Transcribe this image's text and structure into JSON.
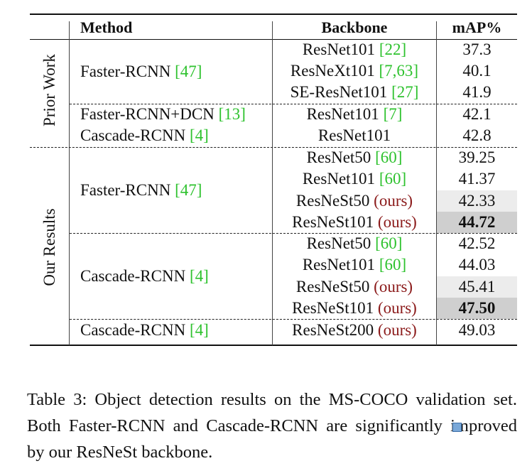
{
  "table": {
    "headers": {
      "method": "Method",
      "backbone": "Backbone",
      "map": "mAP%"
    },
    "groups": {
      "prior": "Prior Work",
      "ours": "Our Results"
    },
    "rows": [
      {
        "method": "",
        "backbone": "ResNet101",
        "cite": "[22]",
        "ours": "",
        "map": "37.3"
      },
      {
        "method": "Faster-RCNN",
        "method_cite": "[47]",
        "backbone": "ResNeXt101",
        "cite": "[7,63]",
        "ours": "",
        "map": "40.1"
      },
      {
        "method": "",
        "backbone": "SE-ResNet101",
        "cite": "[27]",
        "ours": "",
        "map": "41.9"
      },
      {
        "method": "Faster-RCNN+DCN",
        "method_cite": "[13]",
        "backbone": "ResNet101",
        "cite": "[7]",
        "ours": "",
        "map": "42.1"
      },
      {
        "method": "Cascade-RCNN",
        "method_cite": "[4]",
        "backbone": "ResNet101",
        "cite": "",
        "ours": "",
        "map": "42.8"
      },
      {
        "method": "",
        "backbone": "ResNet50",
        "cite": "[60]",
        "ours": "",
        "map": "39.25"
      },
      {
        "method": "Faster-RCNN",
        "method_cite": "[47]",
        "backbone": "ResNet101",
        "cite": "[60]",
        "ours": "",
        "map": "41.37"
      },
      {
        "method": "",
        "backbone": "ResNeSt50",
        "cite": "",
        "ours": "(ours)",
        "map": "42.33"
      },
      {
        "method": "",
        "backbone": "ResNeSt101",
        "cite": "",
        "ours": "(ours)",
        "map": "44.72"
      },
      {
        "method": "",
        "backbone": "ResNet50",
        "cite": "[60]",
        "ours": "",
        "map": "42.52"
      },
      {
        "method": "",
        "backbone": "ResNet101",
        "cite": "[60]",
        "ours": "",
        "map": "44.03"
      },
      {
        "method": "Cascade-RCNN",
        "method_cite": "[4]",
        "backbone": "ResNeSt50",
        "cite": "",
        "ours": "(ours)",
        "map": "45.41"
      },
      {
        "method": "",
        "backbone": "ResNeSt101",
        "cite": "",
        "ours": "(ours)",
        "map": "47.50"
      },
      {
        "method": "Cascade-RCNN",
        "method_cite": "[4]",
        "backbone": "ResNeSt200",
        "cite": "",
        "ours": "(ours)",
        "map": "49.03"
      }
    ]
  },
  "caption": "Table 3: Object detection results on the MS-COCO validation set. Both Faster-RCNN and Cascade-RCNN are significantly improved by our ResNeSt backbone."
}
